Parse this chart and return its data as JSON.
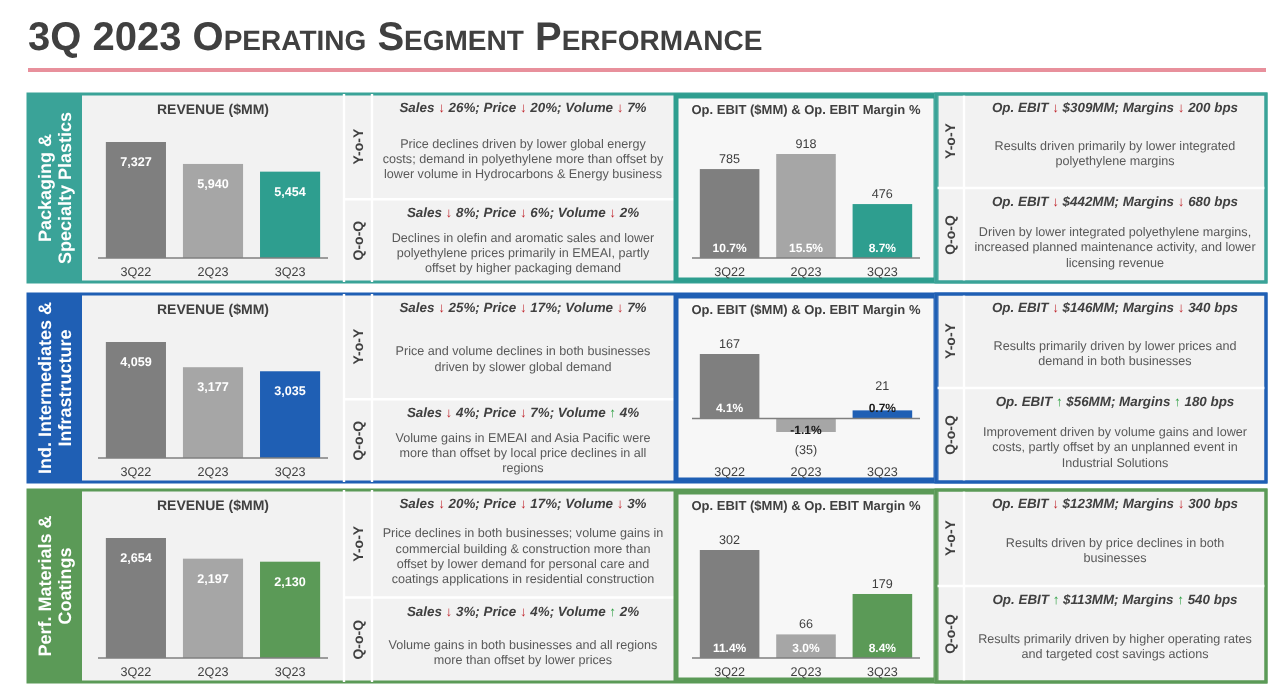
{
  "chart_data": [
    {
      "type": "other",
      "title": "3Q 2023 Operating Segment Performance"
    },
    {
      "type": "other",
      "title": "Packaging & Specialty Plastics",
      "color": "#3aa398",
      "annotations": [
        "Y-o-Y",
        "Sales ↓ 26%; Price ↓ 20%; Volume ↓ 7%",
        "Price declines driven by lower global energy costs; demand in polyethylene more than offset by lower volume in Hydrocarbons & Energy business",
        "Q-o-Q",
        "Sales ↓ 8%; Price ↓ 6%; Volume ↓ 2%",
        "Declines in olefin and aromatic sales and lower polyethylene prices primarily in EMEAI, partly offset by higher packaging demand"
      ]
    },
    {
      "type": "bar",
      "title": "REVENUE ($MM)",
      "categories": [
        "3Q22",
        "2Q23",
        "3Q23"
      ],
      "values": [
        7327,
        5940,
        5454
      ],
      "colors": [
        "#7f7f7f",
        "#a6a6a6",
        "#2e9e8f"
      ],
      "value_labels": [
        "7,327",
        "5,940",
        "5,454"
      ]
    },
    {
      "type": "bar",
      "title": "Op. EBIT ($MM) & Op. EBIT Margin %",
      "categories": [
        "3Q22",
        "2Q23",
        "3Q23"
      ],
      "values": [
        785,
        918,
        476
      ],
      "colors": [
        "#7f7f7f",
        "#a6a6a6",
        "#2e9e8f"
      ],
      "value_labels": [
        "785",
        "918",
        "476"
      ],
      "annotations": [
        {
          "text": "10.7%",
          "x": "3Q22"
        },
        {
          "text": "15.5%",
          "x": "2Q23"
        },
        {
          "text": "8.7%",
          "x": "3Q23"
        }
      ]
    },
    {
      "type": "other",
      "color": "#3aa398",
      "annotations": [
        "Y-o-Y",
        "Op. EBIT ↓ $309MM; Margins ↓ 200 bps",
        "Results driven primarily by lower integrated polyethylene margins",
        "Q-o-Q",
        "Op. EBIT ↓ $442MM; Margins ↓ 680 bps",
        "Driven by lower integrated polyethylene margins, increased planned maintenance activity, and lower licensing revenue"
      ]
    },
    {
      "type": "other",
      "title": "Ind. Intermediates & Infrastructure",
      "color": "#1f5fb4",
      "annotations": [
        "Y-o-Y",
        "Sales ↓ 25%; Price ↓ 17%; Volume ↓ 7%",
        "Price and volume declines in both businesses driven by slower global demand",
        "Q-o-Q",
        "Sales ↓ 4%; Price ↓ 7%; Volume ↑ 4%",
        "Volume gains in EMEAI and Asia Pacific were more than offset by local price declines in all regions"
      ]
    },
    {
      "type": "bar",
      "title": "REVENUE ($MM)",
      "categories": [
        "3Q22",
        "2Q23",
        "3Q23"
      ],
      "values": [
        4059,
        3177,
        3035
      ],
      "colors": [
        "#7f7f7f",
        "#a6a6a6",
        "#1f5fb4"
      ],
      "value_labels": [
        "4,059",
        "3,177",
        "3,035"
      ]
    },
    {
      "type": "bar",
      "title": "Op. EBIT ($MM) & Op. EBIT Margin %",
      "categories": [
        "3Q22",
        "2Q23",
        "3Q23"
      ],
      "values": [
        167,
        -35,
        21
      ],
      "colors": [
        "#7f7f7f",
        "#a6a6a6",
        "#1f5fb4"
      ],
      "value_labels": [
        "167",
        "(35)",
        "21"
      ],
      "annotations": [
        {
          "text": "4.1%",
          "x": "3Q22"
        },
        {
          "text": "-1.1%",
          "x": "2Q23"
        },
        {
          "text": "0.7%",
          "x": "3Q23"
        }
      ]
    },
    {
      "type": "other",
      "color": "#1f5fb4",
      "annotations": [
        "Y-o-Y",
        "Op. EBIT ↓ $146MM; Margins ↓ 340 bps",
        "Results primarily driven by lower prices and demand in both businesses",
        "Q-o-Q",
        "Op. EBIT ↑ $56MM; Margins ↑ 180 bps",
        "Improvement driven by volume gains and lower costs, partly offset by an unplanned event in Industrial Solutions"
      ]
    },
    {
      "type": "other",
      "title": "Perf. Materials & Coatings",
      "color": "#5b9a57",
      "annotations": [
        "Y-o-Y",
        "Sales ↓ 20%; Price ↓ 17%; Volume ↓ 3%",
        "Price declines in both businesses; volume gains in commercial building & construction more than offset by lower demand for personal care and coatings applications in residential construction",
        "Q-o-Q",
        "Sales ↓ 3%; Price ↓ 4%; Volume ↑ 2%",
        "Volume gains in both businesses and all regions more than offset by lower prices"
      ]
    },
    {
      "type": "bar",
      "title": "REVENUE ($MM)",
      "categories": [
        "3Q22",
        "2Q23",
        "3Q23"
      ],
      "values": [
        2654,
        2197,
        2130
      ],
      "colors": [
        "#7f7f7f",
        "#a6a6a6",
        "#5b9a57"
      ],
      "value_labels": [
        "2,654",
        "2,197",
        "2,130"
      ]
    },
    {
      "type": "bar",
      "title": "Op. EBIT ($MM) & Op. EBIT Margin %",
      "categories": [
        "3Q22",
        "2Q23",
        "3Q23"
      ],
      "values": [
        302,
        66,
        179
      ],
      "colors": [
        "#7f7f7f",
        "#a6a6a6",
        "#5b9a57"
      ],
      "value_labels": [
        "302",
        "66",
        "179"
      ],
      "annotations": [
        {
          "text": "11.4%",
          "x": "3Q22"
        },
        {
          "text": "3.0%",
          "x": "2Q23"
        },
        {
          "text": "8.4%",
          "x": "3Q23"
        }
      ]
    },
    {
      "type": "other",
      "color": "#5b9a57",
      "annotations": [
        "Y-o-Y",
        "Op. EBIT ↓ $123MM; Margins ↓ 300 bps",
        "Results driven by price declines in both businesses",
        "Q-o-Q",
        "Op. EBIT ↑ $113MM; Margins ↑ 540 bps",
        "Results primarily driven by higher operating rates and targeted cost savings actions"
      ]
    }
  ]
}
